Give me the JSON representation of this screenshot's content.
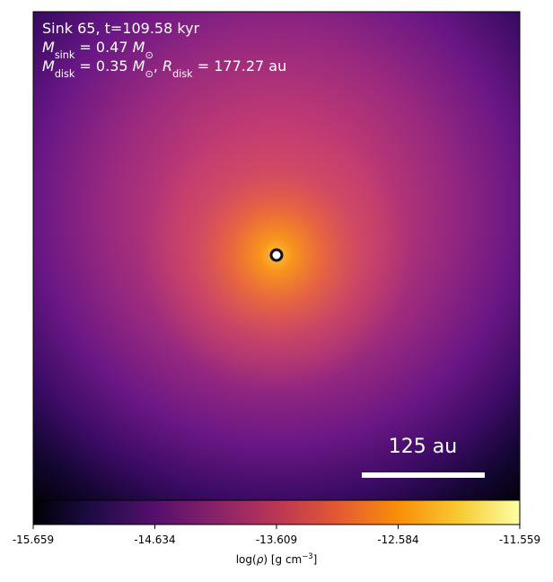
{
  "chart_data": {
    "type": "image",
    "annotation": [
      [
        {
          "text": "Sink 65, t=109.58 kyr"
        }
      ],
      [
        {
          "math": "M"
        },
        {
          "sub": "sink"
        },
        {
          "text": " = 0.47 "
        },
        {
          "math": "M"
        },
        {
          "sub": "⊙"
        }
      ],
      [
        {
          "math": "M"
        },
        {
          "sub": "disk"
        },
        {
          "text": " = 0.35 "
        },
        {
          "math": "M"
        },
        {
          "sub": "⊙"
        },
        {
          "text": ", "
        },
        {
          "math": "R"
        },
        {
          "sub": "disk"
        },
        {
          "text": " = 177.27 au"
        }
      ]
    ],
    "scale_bar": "125 au",
    "colorbar": {
      "cmap": "inferno",
      "clim": [
        -15.659,
        -11.559
      ],
      "cticks": [
        -15.659,
        -14.634,
        -13.609,
        -12.584,
        -11.559
      ],
      "label": [
        {
          "text": "log("
        },
        {
          "math": "ρ"
        },
        {
          "text": ") [g cm"
        },
        {
          "sup": "−3"
        },
        {
          "text": "]"
        }
      ]
    }
  }
}
